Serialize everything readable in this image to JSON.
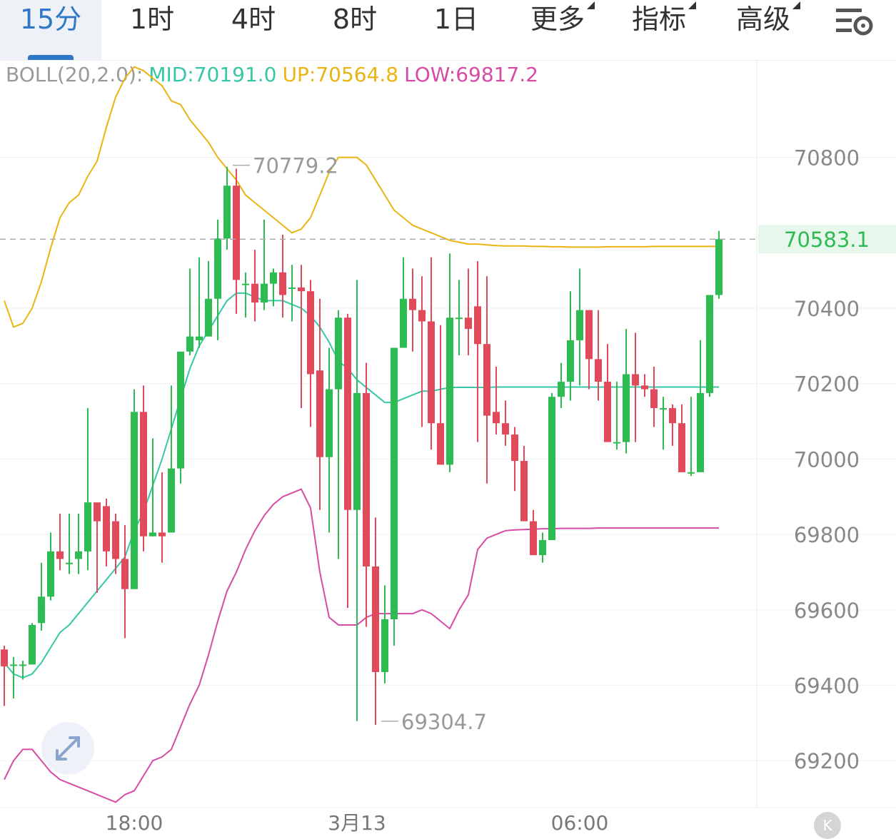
{
  "tabs": [
    {
      "label": "15分",
      "active": true
    },
    {
      "label": "1时"
    },
    {
      "label": "4时"
    },
    {
      "label": "8时"
    },
    {
      "label": "1日"
    },
    {
      "label": "更多",
      "dropdown": true
    },
    {
      "label": "指标",
      "dropdown": true
    },
    {
      "label": "高级",
      "dropdown": true
    }
  ],
  "settings_icon": "chart-settings-icon",
  "indicator": {
    "name": "BOLL(20,2.0):",
    "mid": "MID:70191.0",
    "up": "UP:70564.8",
    "low": "LOW:69817.2"
  },
  "colors": {
    "up_candle": "#2dbb52",
    "down_candle": "#e04a5a",
    "mid_line": "#35c7a6",
    "upper_line": "#eab512",
    "lower_line": "#d64ba5",
    "last_price": "#2dbb52"
  },
  "chart_data": {
    "type": "candlestick",
    "interval": "15分",
    "y_axis": {
      "ticks": [
        70800,
        70400,
        70200,
        70000,
        69800,
        69600,
        69400,
        69200
      ],
      "range": [
        69080,
        71020
      ]
    },
    "x_axis": {
      "ticks": [
        {
          "label": "18:00",
          "index": 14
        },
        {
          "label": "3月13",
          "index": 38
        },
        {
          "label": "06:00",
          "index": 62
        }
      ]
    },
    "last_price": "70583.1",
    "annotations": {
      "high": "70779.2",
      "low": "69304.7"
    },
    "candles": [
      [
        69495,
        69450,
        69505,
        69345
      ],
      [
        69455,
        69455,
        69475,
        69365
      ],
      [
        69455,
        69455,
        69465,
        69415
      ],
      [
        69455,
        69560,
        69565,
        69455
      ],
      [
        69565,
        69635,
        69725,
        69545
      ],
      [
        69635,
        69755,
        69805,
        69625
      ],
      [
        69755,
        69735,
        69855,
        69705
      ],
      [
        69725,
        69725,
        69855,
        69695
      ],
      [
        69735,
        69755,
        69855,
        69695
      ],
      [
        69755,
        69885,
        70135,
        69705
      ],
      [
        69885,
        69835,
        69865,
        69645
      ],
      [
        69875,
        69755,
        69895,
        69715
      ],
      [
        69835,
        69735,
        69855,
        69695
      ],
      [
        69735,
        69655,
        69825,
        69525
      ],
      [
        69655,
        70125,
        70185,
        69655
      ],
      [
        70125,
        69795,
        70195,
        69755
      ],
      [
        69795,
        69805,
        70055,
        69795
      ],
      [
        69805,
        69795,
        69965,
        69725
      ],
      [
        69805,
        69975,
        70195,
        69805
      ],
      [
        69975,
        70285,
        70235,
        69935
      ],
      [
        70285,
        70325,
        70505,
        70275
      ],
      [
        70315,
        70325,
        70535,
        70295
      ],
      [
        70325,
        70425,
        70525,
        70325
      ],
      [
        70425,
        70585,
        70635,
        70315
      ],
      [
        70585,
        70725,
        70775,
        70555
      ],
      [
        70725,
        70475,
        70770,
        70385
      ],
      [
        70465,
        70465,
        70495,
        70375
      ],
      [
        70465,
        70415,
        70555,
        70365
      ],
      [
        70415,
        70465,
        70635,
        70395
      ],
      [
        70465,
        70495,
        70505,
        70405
      ],
      [
        70495,
        70435,
        70595,
        70375
      ],
      [
        70455,
        70455,
        70515,
        70365
      ],
      [
        70455,
        70445,
        70515,
        70135
      ],
      [
        70445,
        70225,
        70475,
        70085
      ],
      [
        70235,
        70005,
        70425,
        69865
      ],
      [
        70005,
        70185,
        70295,
        69805
      ],
      [
        70185,
        70375,
        70395,
        69735
      ],
      [
        70375,
        69865,
        70385,
        69605
      ],
      [
        69865,
        70175,
        70475,
        69305
      ],
      [
        70175,
        69715,
        70255,
        69555
      ],
      [
        69715,
        69435,
        69845,
        69295
      ],
      [
        69435,
        69575,
        69665,
        69405
      ],
      [
        69575,
        70295,
        70195,
        69505
      ],
      [
        70295,
        70425,
        70535,
        70395
      ],
      [
        70425,
        70395,
        70505,
        70285
      ],
      [
        70395,
        70365,
        70485,
        70085
      ],
      [
        70365,
        70095,
        70535,
        70025
      ],
      [
        70095,
        69985,
        70355,
        69995
      ],
      [
        69985,
        70375,
        70545,
        69965
      ],
      [
        70375,
        70375,
        70475,
        70275
      ],
      [
        70375,
        70345,
        70505,
        70275
      ],
      [
        70405,
        70305,
        70525,
        70045
      ],
      [
        70305,
        70115,
        70485,
        69935
      ],
      [
        70125,
        70095,
        70245,
        70065
      ],
      [
        70095,
        70065,
        70155,
        70035
      ],
      [
        70065,
        69995,
        70085,
        69915
      ],
      [
        69995,
        69835,
        70035,
        69875
      ],
      [
        69835,
        69745,
        69865,
        69805
      ],
      [
        69745,
        69785,
        69805,
        69725
      ],
      [
        69785,
        70165,
        70175,
        70005
      ],
      [
        70165,
        70205,
        70255,
        70135
      ],
      [
        70205,
        70315,
        70445,
        70155
      ],
      [
        70315,
        70395,
        70505,
        70195
      ],
      [
        70395,
        70265,
        70395,
        70185
      ],
      [
        70265,
        70205,
        70395,
        70155
      ],
      [
        70205,
        70045,
        70305,
        70045
      ],
      [
        70045,
        70045,
        70205,
        70025
      ],
      [
        70045,
        70225,
        70345,
        70015
      ],
      [
        70225,
        70195,
        70335,
        70045
      ],
      [
        70195,
        70185,
        70225,
        70165
      ],
      [
        70185,
        70135,
        70245,
        70085
      ],
      [
        70135,
        70135,
        70165,
        70025
      ],
      [
        70135,
        70095,
        70145,
        70035
      ],
      [
        70095,
        69965,
        70145,
        69975
      ],
      [
        69965,
        69965,
        70165,
        69955
      ],
      [
        69965,
        70175,
        70315,
        70005
      ],
      [
        70175,
        70435,
        70405,
        70165
      ],
      [
        70435,
        70583.1,
        70605,
        70425
      ]
    ],
    "series": [
      {
        "name": "UP",
        "values": [
          70420,
          70350,
          70360,
          70400,
          70470,
          70560,
          70640,
          70680,
          70700,
          70750,
          70790,
          70880,
          70960,
          71010,
          71040,
          71030,
          71010,
          70990,
          70950,
          70940,
          70900,
          70870,
          70840,
          70800,
          70770,
          70740,
          70700,
          70680,
          70660,
          70640,
          70620,
          70600,
          70610,
          70640,
          70700,
          70760,
          70800,
          70800,
          70800,
          70780,
          70740,
          70700,
          70660,
          70640,
          70620,
          70610,
          70600,
          70590,
          70580,
          70575,
          70570,
          70570,
          70568,
          70566,
          70565,
          70565,
          70565,
          70564,
          70564,
          70563,
          70563,
          70562,
          70562,
          70562,
          70562,
          70563,
          70563,
          70563,
          70563,
          70563,
          70564,
          70564,
          70564,
          70564,
          70564,
          70564,
          70564,
          70564
        ]
      },
      {
        "name": "MID",
        "values": [
          69460,
          69430,
          69420,
          69430,
          69460,
          69500,
          69540,
          69560,
          69590,
          69620,
          69650,
          69680,
          69710,
          69740,
          69810,
          69860,
          69930,
          70000,
          70080,
          70160,
          70240,
          70300,
          70340,
          70380,
          70420,
          70440,
          70440,
          70430,
          70420,
          70420,
          70420,
          70410,
          70400,
          70380,
          70350,
          70310,
          70260,
          70240,
          70210,
          70190,
          70170,
          70150,
          70150,
          70160,
          70170,
          70180,
          70180,
          70185,
          70190,
          70190,
          70190,
          70190,
          70190,
          70191,
          70191,
          70191,
          70191,
          70191,
          70191,
          70191,
          70191,
          70191,
          70191,
          70191,
          70191,
          70191,
          70191,
          70191,
          70191,
          70191,
          70191,
          70191,
          70191,
          70191,
          70191,
          70191,
          70191,
          70191
        ]
      },
      {
        "name": "LOW",
        "values": [
          69150,
          69200,
          69230,
          69230,
          69200,
          69170,
          69150,
          69140,
          69130,
          69120,
          69110,
          69100,
          69090,
          69110,
          69120,
          69160,
          69200,
          69210,
          69230,
          69290,
          69350,
          69400,
          69480,
          69570,
          69650,
          69700,
          69760,
          69810,
          69850,
          69880,
          69900,
          69910,
          69920,
          69870,
          69700,
          69580,
          69560,
          69560,
          69560,
          69580,
          69590,
          69590,
          69590,
          69590,
          69590,
          69600,
          69590,
          69570,
          69550,
          69600,
          69640,
          69760,
          69790,
          69800,
          69810,
          69812,
          69813,
          69814,
          69815,
          69815,
          69816,
          69816,
          69816,
          69816,
          69817,
          69817,
          69817,
          69817,
          69817,
          69817,
          69817,
          69817,
          69817,
          69817,
          69817,
          69817,
          69817,
          69817
        ]
      }
    ]
  }
}
